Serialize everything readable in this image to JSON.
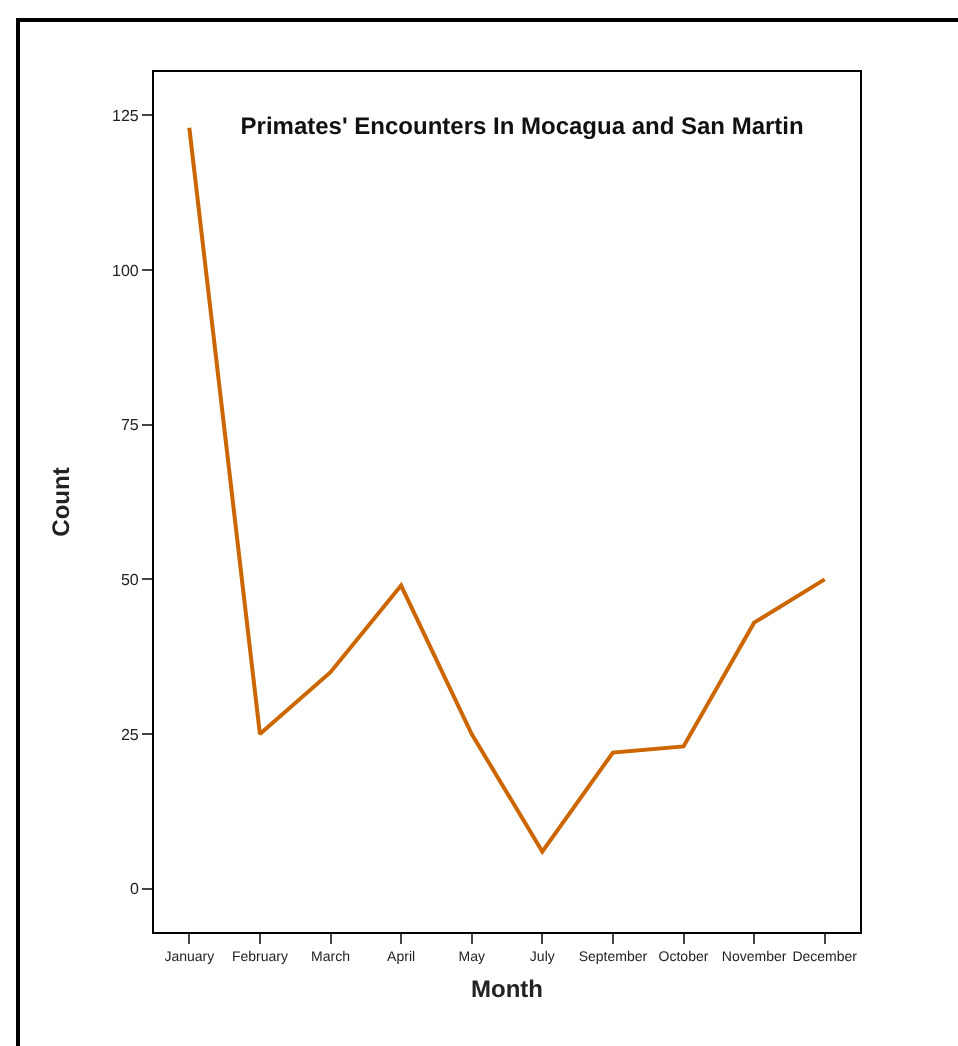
{
  "chart_data": {
    "type": "line",
    "title": "Primates' Encounters In Mocagua and San Martin",
    "xlabel": "Month",
    "ylabel": "Count",
    "categories": [
      "January",
      "February",
      "March",
      "April",
      "May",
      "July",
      "September",
      "October",
      "November",
      "December"
    ],
    "series": [
      {
        "color": "#cc6600",
        "values": [
          123,
          25,
          35,
          49,
          25,
          6,
          22,
          23,
          43,
          50
        ]
      }
    ],
    "ylim": [
      -7,
      132
    ],
    "yticks": [
      0,
      25,
      50,
      75,
      100,
      125
    ],
    "marker": "none",
    "line_style": "solid"
  }
}
